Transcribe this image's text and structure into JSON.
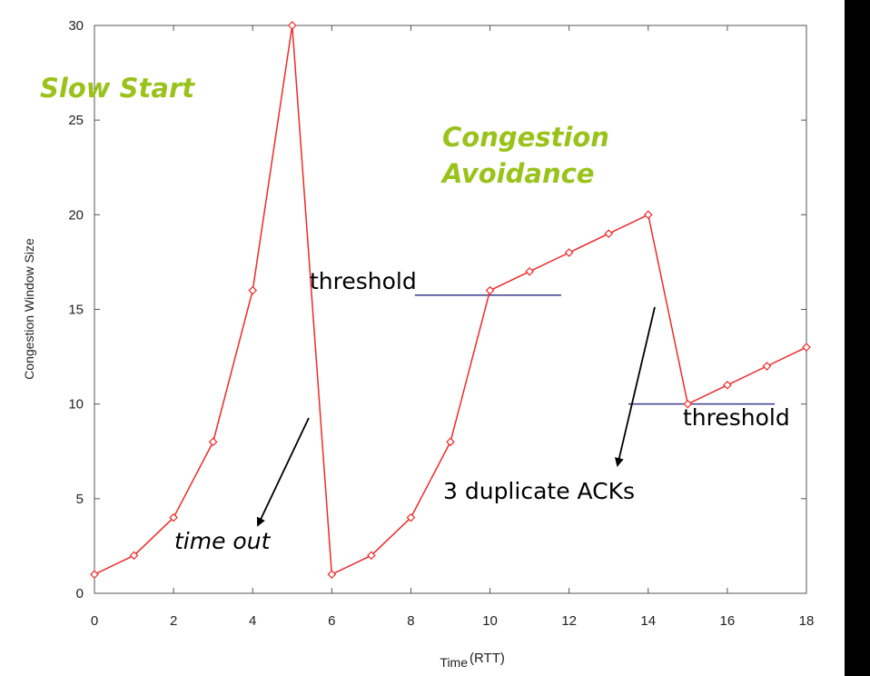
{
  "colors": {
    "series": "#ee2a2a",
    "threshold_line": "#3a3a8c",
    "phase_label": "#99c31a",
    "arrow": "#000000"
  },
  "chart_data": {
    "type": "line",
    "title": "",
    "xlabel": "Time",
    "xlabel_unit": "(RTT)",
    "ylabel": "Congestion Window Size",
    "xlim": [
      0,
      18
    ],
    "ylim": [
      0,
      30
    ],
    "xticks": [
      0,
      2,
      4,
      6,
      8,
      10,
      12,
      14,
      16,
      18
    ],
    "yticks": [
      0,
      5,
      10,
      15,
      20,
      25,
      30
    ],
    "grid": false,
    "series": [
      {
        "x": [
          0,
          1,
          2,
          3,
          4,
          5,
          6,
          7,
          8,
          9,
          10,
          11,
          12,
          13,
          14,
          15,
          16,
          17,
          18
        ],
        "values": [
          1,
          2,
          4,
          8,
          16,
          30,
          1,
          2,
          4,
          8,
          16,
          17,
          18,
          19,
          20,
          10,
          11,
          12,
          13
        ]
      }
    ],
    "thresholds": [
      {
        "x_start": 8.1,
        "x_end": 11.8,
        "y": 15.75
      },
      {
        "x_start": 13.5,
        "x_end": 17.2,
        "y": 10
      }
    ],
    "annotations": {
      "slow_start": "Slow Start",
      "congestion_line1": "Congestion",
      "congestion_line2": "Avoidance",
      "threshold_1": "threshold",
      "threshold_2": "threshold",
      "time_out": "time out",
      "dup_acks": "3 duplicate ACKs"
    }
  }
}
